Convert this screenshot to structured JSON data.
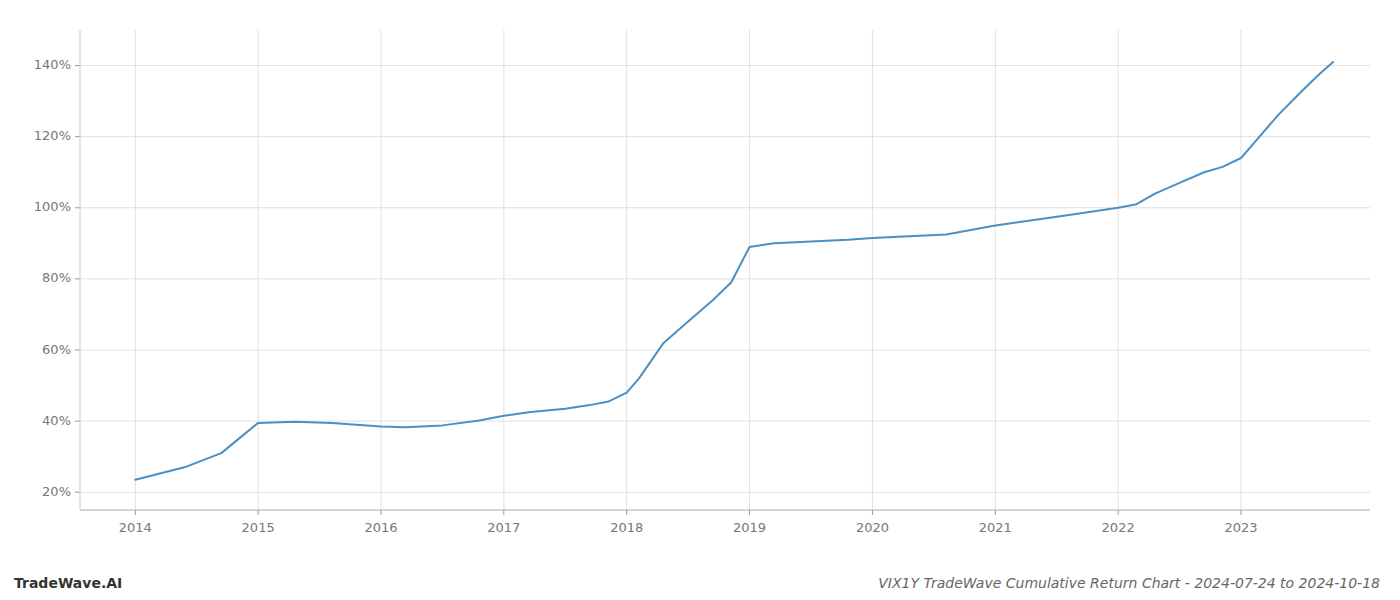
{
  "chart_data": {
    "type": "line",
    "title": "VIX1Y TradeWave Cumulative Return Chart - 2024-07-24 to 2024-10-18",
    "annotations": [
      "TradeWave.AI"
    ],
    "x": [
      2014.0,
      2014.4,
      2014.7,
      2015.0,
      2015.3,
      2015.6,
      2016.0,
      2016.2,
      2016.5,
      2016.8,
      2017.0,
      2017.2,
      2017.5,
      2017.7,
      2017.85,
      2018.0,
      2018.1,
      2018.2,
      2018.3,
      2018.5,
      2018.7,
      2018.85,
      2019.0,
      2019.2,
      2019.5,
      2019.8,
      2020.0,
      2020.3,
      2020.6,
      2021.0,
      2021.3,
      2021.6,
      2022.0,
      2022.15,
      2022.3,
      2022.5,
      2022.7,
      2022.85,
      2023.0,
      2023.1,
      2023.3,
      2023.5,
      2023.65,
      2023.75
    ],
    "values": [
      23.5,
      27,
      31,
      39.5,
      39.8,
      39.5,
      38.5,
      38.3,
      38.8,
      40.2,
      41.5,
      42.5,
      43.5,
      44.5,
      45.5,
      48,
      52,
      57,
      62,
      68,
      74,
      79,
      89,
      90,
      90.5,
      91,
      91.5,
      92,
      92.5,
      95,
      96.5,
      98,
      100,
      101,
      104,
      107,
      110,
      111.5,
      114,
      118,
      126,
      133,
      138,
      141
    ],
    "color": "#4a90c4",
    "xlim": [
      2013.55,
      2024.05
    ],
    "xticks": [
      2014,
      2015,
      2016,
      2017,
      2018,
      2019,
      2020,
      2021,
      2022,
      2023
    ],
    "ylim": [
      15,
      150
    ],
    "yticks": [
      {
        "value": 20,
        "label": "20%"
      },
      {
        "value": 40,
        "label": "40%"
      },
      {
        "value": 60,
        "label": "60%"
      },
      {
        "value": 80,
        "label": "80%"
      },
      {
        "value": 100,
        "label": "100%"
      },
      {
        "value": 120,
        "label": "120%"
      },
      {
        "value": 140,
        "label": "140%"
      }
    ],
    "grid": true
  }
}
